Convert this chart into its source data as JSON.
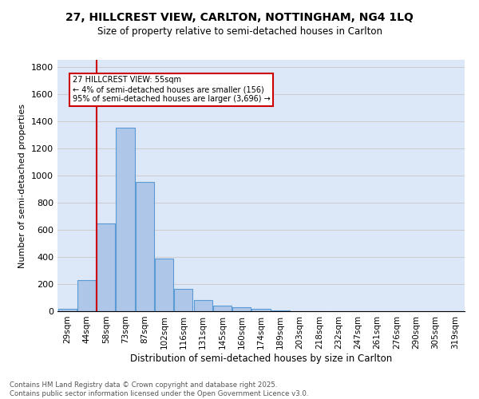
{
  "title": "27, HILLCREST VIEW, CARLTON, NOTTINGHAM, NG4 1LQ",
  "subtitle": "Size of property relative to semi-detached houses in Carlton",
  "xlabel": "Distribution of semi-detached houses by size in Carlton",
  "ylabel": "Number of semi-detached properties",
  "categories": [
    "29sqm",
    "44sqm",
    "58sqm",
    "73sqm",
    "87sqm",
    "102sqm",
    "116sqm",
    "131sqm",
    "145sqm",
    "160sqm",
    "174sqm",
    "189sqm",
    "203sqm",
    "218sqm",
    "232sqm",
    "247sqm",
    "261sqm",
    "276sqm",
    "290sqm",
    "305sqm",
    "319sqm"
  ],
  "values": [
    20,
    230,
    645,
    1350,
    950,
    390,
    165,
    80,
    42,
    30,
    20,
    5,
    0,
    0,
    0,
    0,
    0,
    0,
    0,
    0,
    0
  ],
  "bar_color": "#aec6e8",
  "bar_edge_color": "#5b9bd5",
  "grid_color": "#cccccc",
  "background_color": "#dce8f8",
  "vline_color": "#cc0000",
  "annotation_text": "27 HILLCREST VIEW: 55sqm\n← 4% of semi-detached houses are smaller (156)\n95% of semi-detached houses are larger (3,696) →",
  "annotation_box_color": "#cc0000",
  "footer": "Contains HM Land Registry data © Crown copyright and database right 2025.\nContains public sector information licensed under the Open Government Licence v3.0.",
  "ylim": [
    0,
    1850
  ],
  "yticks": [
    0,
    200,
    400,
    600,
    800,
    1000,
    1200,
    1400,
    1600,
    1800
  ]
}
